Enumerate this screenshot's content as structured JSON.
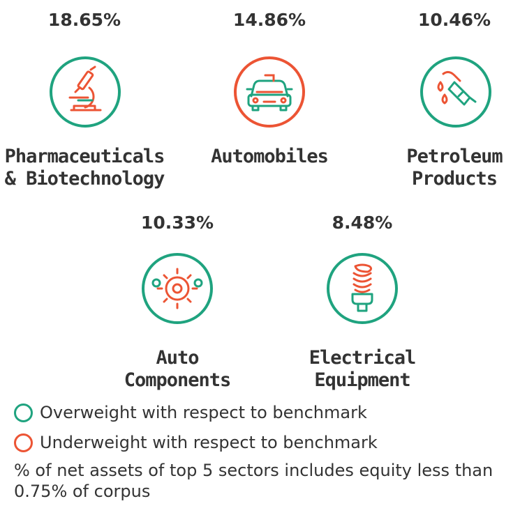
{
  "colors": {
    "overweight": "#1fa37f",
    "underweight": "#ec5434",
    "text": "#333333"
  },
  "sectors": [
    {
      "pct": "18.65%",
      "name": [
        "Pharmaceuticals",
        "& Biotechnology"
      ],
      "weight": "overweight",
      "icon": "microscope-icon"
    },
    {
      "pct": "14.86%",
      "name": [
        "Automobiles"
      ],
      "weight": "underweight",
      "icon": "car-icon"
    },
    {
      "pct": "10.46%",
      "name": [
        "Petroleum",
        "Products"
      ],
      "weight": "overweight",
      "icon": "fuel-nozzle-icon"
    },
    {
      "pct": "10.33%",
      "name": [
        "Auto",
        "Components"
      ],
      "weight": "overweight",
      "icon": "gears-icon"
    },
    {
      "pct": "8.48%",
      "name": [
        "Electrical",
        "Equipment"
      ],
      "weight": "overweight",
      "icon": "bulb-icon"
    }
  ],
  "legend": {
    "overweight": "Overweight with respect to benchmark",
    "underweight": "Underweight with respect to benchmark"
  },
  "note": "% of net assets of top 5 sectors includes equity less than 0.75% of corpus"
}
